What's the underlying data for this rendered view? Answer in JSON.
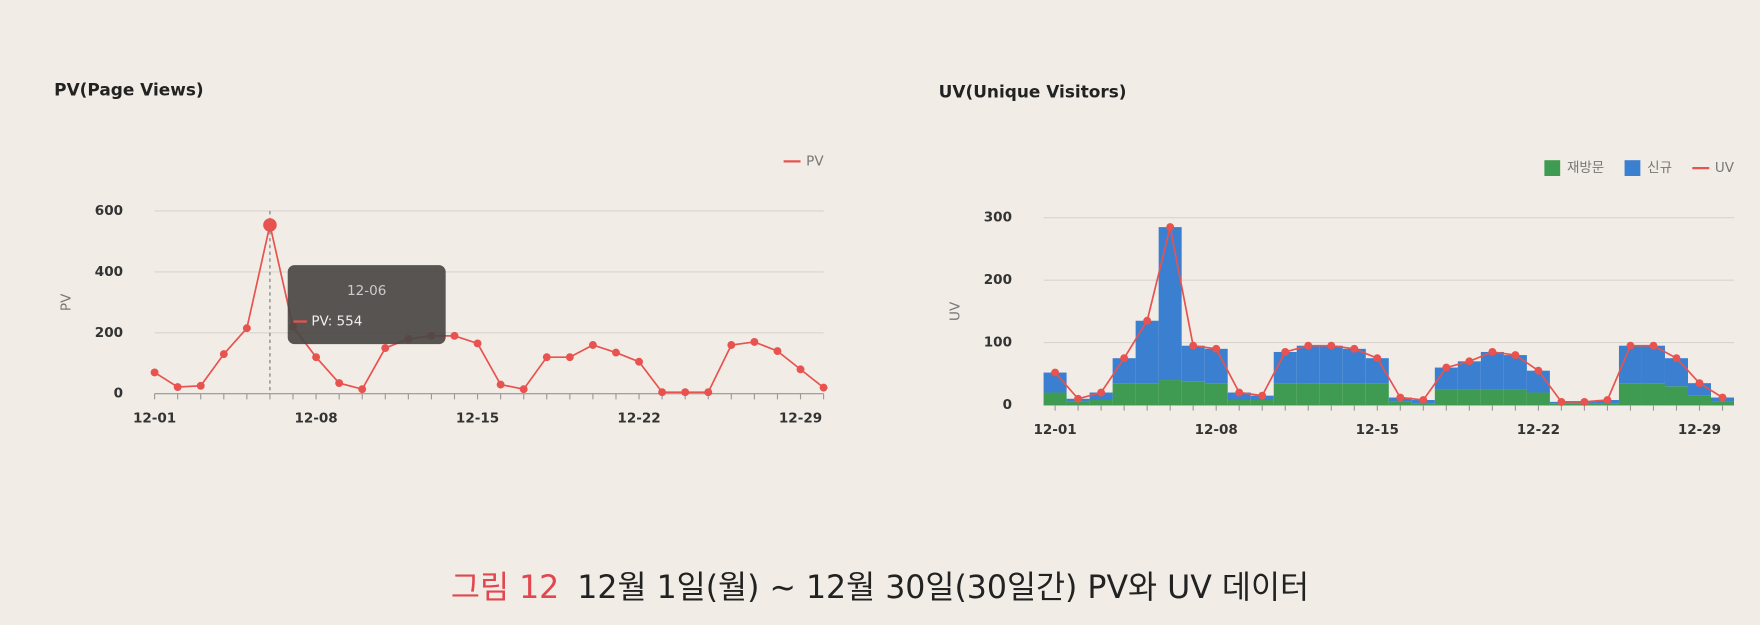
{
  "chart_data": [
    {
      "type": "line",
      "title": "PV(Page Views)",
      "y_label": "PV",
      "categories": [
        "12-01",
        null,
        null,
        null,
        null,
        null,
        null,
        "12-08",
        null,
        null,
        null,
        null,
        null,
        null,
        "12-15",
        null,
        null,
        null,
        null,
        null,
        null,
        "12-22",
        null,
        null,
        null,
        null,
        null,
        null,
        "12-29",
        null
      ],
      "series": [
        {
          "name": "PV",
          "color": "#e8524f",
          "values": [
            70,
            22,
            26,
            130,
            215,
            554,
            220,
            120,
            35,
            15,
            150,
            180,
            190,
            190,
            165,
            30,
            15,
            120,
            120,
            160,
            135,
            105,
            5,
            5,
            5,
            160,
            170,
            140,
            80,
            20
          ]
        }
      ],
      "ylim": [
        0,
        600
      ],
      "yticks": [
        0,
        200,
        400,
        600
      ],
      "grid": true,
      "legend": "top-right",
      "tooltip": {
        "title": "12-06",
        "text": "PV: 554"
      }
    },
    {
      "type": "bar",
      "stacked": true,
      "title": "UV(Unique Visitors)",
      "y_label": "UV",
      "categories": [
        "12-01",
        null,
        null,
        null,
        null,
        null,
        null,
        "12-08",
        null,
        null,
        null,
        null,
        null,
        null,
        "12-15",
        null,
        null,
        null,
        null,
        null,
        null,
        "12-22",
        null,
        null,
        null,
        null,
        null,
        null,
        "12-29",
        null
      ],
      "series": [
        {
          "name": "재방문",
          "color": "#3f9a52",
          "values": [
            20,
            5,
            8,
            35,
            35,
            40,
            38,
            35,
            8,
            8,
            35,
            35,
            35,
            35,
            35,
            5,
            3,
            25,
            25,
            25,
            25,
            20,
            2,
            2,
            3,
            35,
            35,
            30,
            15,
            5
          ]
        },
        {
          "name": "신규",
          "color": "#3b7fd0",
          "values": [
            32,
            5,
            12,
            40,
            100,
            245,
            57,
            55,
            12,
            7,
            50,
            60,
            60,
            55,
            40,
            7,
            5,
            35,
            45,
            60,
            55,
            35,
            3,
            3,
            5,
            60,
            60,
            45,
            20,
            7
          ]
        },
        {
          "name": "UV",
          "type": "line",
          "color": "#e8524f",
          "values": [
            52,
            10,
            20,
            75,
            135,
            285,
            95,
            90,
            20,
            15,
            85,
            95,
            95,
            90,
            75,
            12,
            8,
            60,
            70,
            85,
            80,
            55,
            5,
            5,
            8,
            95,
            95,
            75,
            35,
            12
          ]
        }
      ],
      "ylim": [
        0,
        300
      ],
      "yticks": [
        0,
        100,
        200,
        300
      ],
      "grid": true,
      "legend": "top-right"
    }
  ],
  "caption": {
    "label": "그림 12",
    "text": "12월 1일(월) ~ 12월 30일(30일간) PV와 UV 데이터"
  }
}
